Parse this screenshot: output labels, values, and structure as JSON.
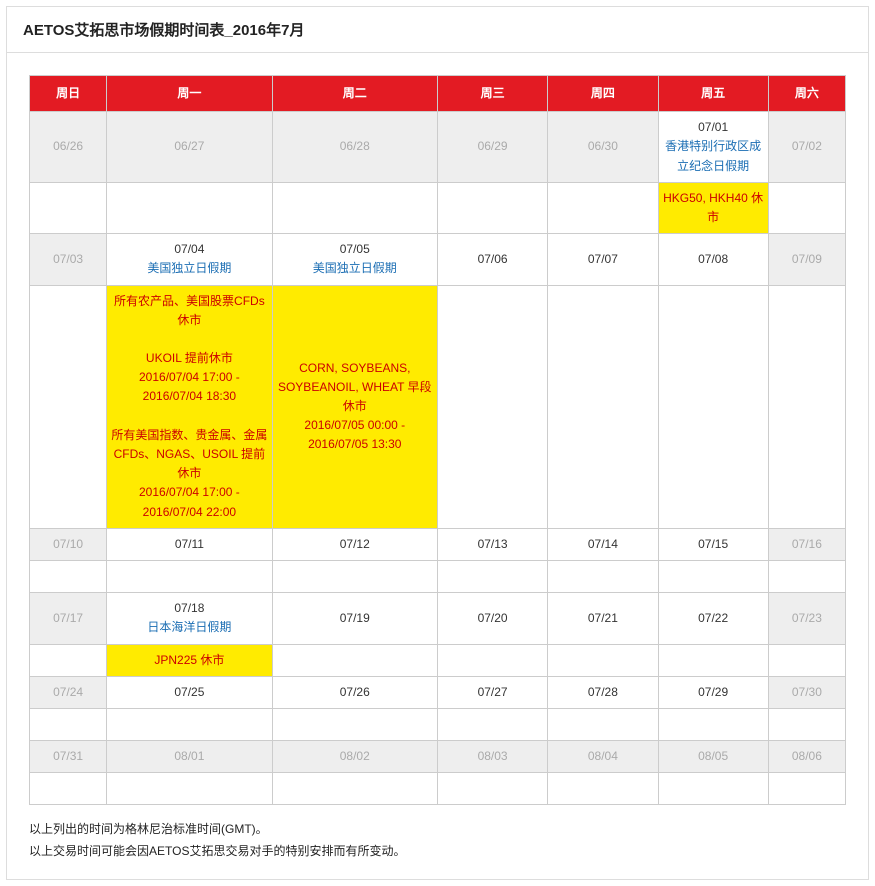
{
  "title": "AETOS艾拓思市场假期时间表_2016年7月",
  "headers": [
    "周日",
    "周一",
    "周二",
    "周三",
    "周四",
    "周五",
    "周六"
  ],
  "colors": {
    "header_bg": "#e31b23",
    "header_fg": "#ffffff",
    "highlight_bg": "#ffeb00",
    "highlight_fg": "#cc0000",
    "holiday_link": "#1a6db3",
    "out_bg": "#eeeeee",
    "out_fg": "#aaaaaa",
    "border": "#cccccc"
  },
  "weeks": [
    {
      "dates": [
        {
          "d": "06/26",
          "out": true
        },
        {
          "d": "06/27",
          "out": true
        },
        {
          "d": "06/28",
          "out": true
        },
        {
          "d": "06/29",
          "out": true
        },
        {
          "d": "06/30",
          "out": true
        },
        {
          "d": "07/01",
          "hol": "香港特别行政区成立纪念日假期"
        },
        {
          "d": "07/02",
          "out": true
        }
      ],
      "details": [
        {
          "col": 5,
          "text": "HKG50, HKH40 休市"
        }
      ]
    },
    {
      "dates": [
        {
          "d": "07/03",
          "out": true
        },
        {
          "d": "07/04",
          "hol": "美国独立日假期"
        },
        {
          "d": "07/05",
          "hol": "美国独立日假期"
        },
        {
          "d": "07/06"
        },
        {
          "d": "07/07"
        },
        {
          "d": "07/08"
        },
        {
          "d": "07/09",
          "out": true
        }
      ],
      "details": [
        {
          "col": 1,
          "text": "所有农产品、美国股票CFDs 休市\n\nUKOIL  提前休市\n2016/07/04 17:00 - 2016/07/04 18:30\n\n所有美国指数、贵金属、金属CFDs、NGAS、USOIL 提前休市\n2016/07/04 17:00 - 2016/07/04 22:00"
        },
        {
          "col": 2,
          "text": "CORN, SOYBEANS, SOYBEANOIL, WHEAT 早段休市\n2016/07/05 00:00 - 2016/07/05 13:30"
        }
      ]
    },
    {
      "dates": [
        {
          "d": "07/10",
          "out": true
        },
        {
          "d": "07/11"
        },
        {
          "d": "07/12"
        },
        {
          "d": "07/13"
        },
        {
          "d": "07/14"
        },
        {
          "d": "07/15"
        },
        {
          "d": "07/16",
          "out": true
        }
      ],
      "details": []
    },
    {
      "dates": [
        {
          "d": "07/17",
          "out": true
        },
        {
          "d": "07/18",
          "hol": "日本海洋日假期"
        },
        {
          "d": "07/19"
        },
        {
          "d": "07/20"
        },
        {
          "d": "07/21"
        },
        {
          "d": "07/22"
        },
        {
          "d": "07/23",
          "out": true
        }
      ],
      "details": [
        {
          "col": 1,
          "text": "JPN225 休市"
        }
      ]
    },
    {
      "dates": [
        {
          "d": "07/24",
          "out": true
        },
        {
          "d": "07/25"
        },
        {
          "d": "07/26"
        },
        {
          "d": "07/27"
        },
        {
          "d": "07/28"
        },
        {
          "d": "07/29"
        },
        {
          "d": "07/30",
          "out": true
        }
      ],
      "details": []
    },
    {
      "dates": [
        {
          "d": "07/31",
          "out": true
        },
        {
          "d": "08/01",
          "out": true
        },
        {
          "d": "08/02",
          "out": true
        },
        {
          "d": "08/03",
          "out": true
        },
        {
          "d": "08/04",
          "out": true
        },
        {
          "d": "08/05",
          "out": true
        },
        {
          "d": "08/06",
          "out": true
        }
      ],
      "details": []
    }
  ],
  "footer": [
    "以上列出的时间为格林尼治标准时间(GMT)。",
    "以上交易时间可能会因AETOS艾拓思交易对手的特别安排而有所变动。"
  ]
}
